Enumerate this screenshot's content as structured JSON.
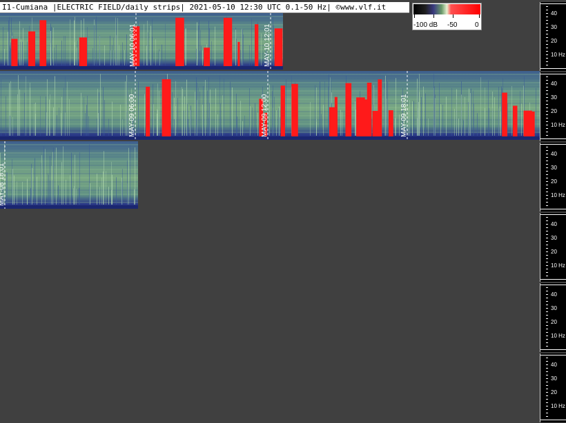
{
  "header": {
    "text": "I1-Cumiana |ELECTRIC FIELD/daily strips| 2021-05-10 12:30 UTC 0.1-50 Hz| ©www.vlf.it"
  },
  "colorbar": {
    "labels": [
      "-100 dB",
      "-50",
      "0"
    ]
  },
  "axis": {
    "labels": [
      "40",
      "30",
      "20",
      "10 Hz"
    ]
  },
  "colors": {
    "background": "#404040",
    "low_level": "#2a3a8a",
    "mid_level": "#7aa47a",
    "high_level": "#ff0000"
  },
  "chart_data": {
    "type": "heatmap",
    "title": "I1-Cumiana |ELECTRIC FIELD/daily strips| 2021-05-10 12:30 UTC 0.1-50 Hz| ©www.vlf.it",
    "ylabel": "Hz",
    "y_ticks": [
      10,
      20,
      30,
      40
    ],
    "ylim": [
      0.1,
      50
    ],
    "colorbar": {
      "min_db": -100,
      "mid_db": -50,
      "max_db": 0
    },
    "strips": [
      {
        "name": "strip-may10",
        "time_markers": [
          {
            "label": "MAY-10  06:01"
          },
          {
            "label": "MAY-10  12:01"
          }
        ],
        "bursts": [
          0.04,
          0.1,
          0.14,
          0.28,
          0.47,
          0.62,
          0.72,
          0.79,
          0.84,
          0.9,
          0.97
        ]
      },
      {
        "name": "strip-may09",
        "time_markers": [
          {
            "label": "MAY-09  06:00"
          },
          {
            "label": "MAY-09  12:00"
          },
          {
            "label": "MAY-09  18:01"
          }
        ],
        "bursts": [
          0.27,
          0.3,
          0.48,
          0.49,
          0.52,
          0.54,
          0.61,
          0.62,
          0.64,
          0.66,
          0.67,
          0.68,
          0.69,
          0.7,
          0.72,
          0.93,
          0.95,
          0.97,
          0.98
        ]
      },
      {
        "name": "strip-may08",
        "time_markers": [
          {
            "label": "MAY-08  18:01"
          }
        ],
        "bursts": []
      }
    ]
  }
}
